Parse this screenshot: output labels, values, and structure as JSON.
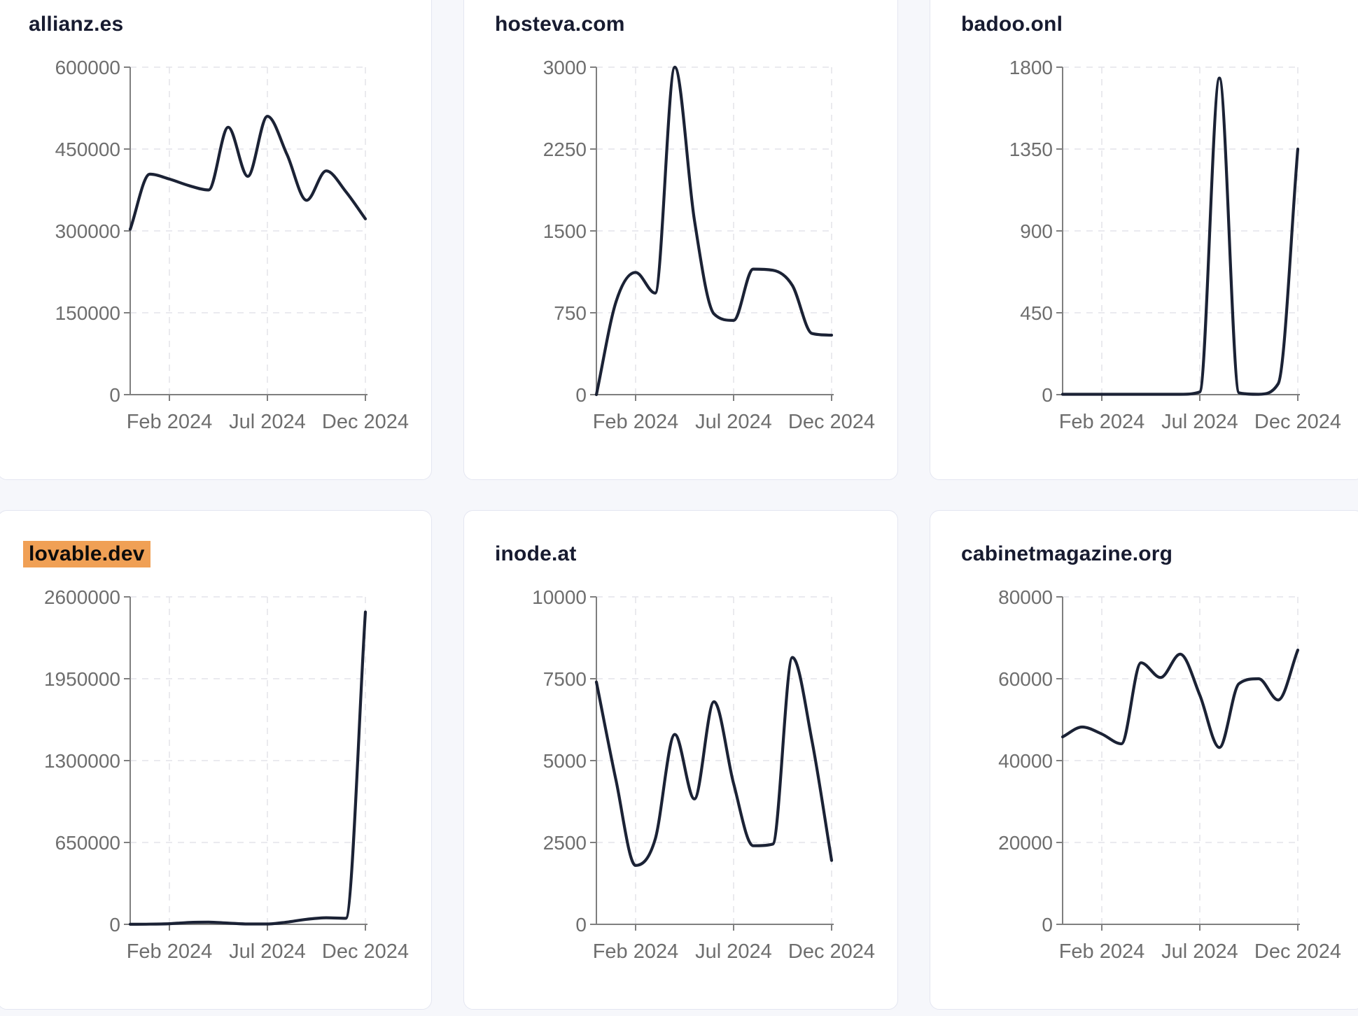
{
  "page": {
    "background_color": "#f6f7fb",
    "card_background": "#ffffff",
    "card_border_color": "#e4e6f1",
    "title_color": "#171b30",
    "highlight_color": "#f0a055",
    "line_color": "#1b2235",
    "grid_color": "#e4e4ea",
    "axis_color": "#7f7f7f",
    "tick_text_color": "#6e6e6e"
  },
  "x_axis": {
    "tick_labels": [
      "Feb 2024",
      "Jul 2024",
      "Dec 2024"
    ],
    "tick_point_indices": [
      2,
      7,
      12
    ]
  },
  "chart_data": [
    {
      "type": "line",
      "title": "allianz.es",
      "highlighted": false,
      "x": [
        "Dec 2023",
        "Jan 2024",
        "Feb 2024",
        "Mar 2024",
        "Apr 2024",
        "May 2024",
        "Jun 2024",
        "Jul 2024",
        "Aug 2024",
        "Sep 2024",
        "Oct 2024",
        "Nov 2024",
        "Dec 2024"
      ],
      "values": [
        303000,
        404000,
        395000,
        383000,
        375000,
        490000,
        400000,
        510000,
        440000,
        356000,
        410000,
        372000,
        322000
      ],
      "ylim": [
        0,
        600000
      ],
      "y_ticks": [
        0,
        150000,
        300000,
        450000,
        600000
      ],
      "grid": true,
      "legend": "none"
    },
    {
      "type": "line",
      "title": "hosteva.com",
      "highlighted": false,
      "x": [
        "Dec 2023",
        "Jan 2024",
        "Feb 2024",
        "Mar 2024",
        "Apr 2024",
        "May 2024",
        "Jun 2024",
        "Jul 2024",
        "Aug 2024",
        "Sep 2024",
        "Oct 2024",
        "Nov 2024",
        "Dec 2024"
      ],
      "values": [
        0,
        850,
        1120,
        930,
        3000,
        1600,
        740,
        680,
        1150,
        1140,
        1000,
        560,
        545
      ],
      "ylim": [
        0,
        3000
      ],
      "y_ticks": [
        0,
        750,
        1500,
        2250,
        3000
      ],
      "grid": true,
      "legend": "none"
    },
    {
      "type": "line",
      "title": "badoo.onl",
      "highlighted": false,
      "x": [
        "Dec 2023",
        "Jan 2024",
        "Feb 2024",
        "Mar 2024",
        "Apr 2024",
        "May 2024",
        "Jun 2024",
        "Jul 2024",
        "Aug 2024",
        "Sep 2024",
        "Oct 2024",
        "Nov 2024",
        "Dec 2024"
      ],
      "values": [
        2,
        2,
        2,
        2,
        2,
        2,
        2,
        15,
        1740,
        10,
        2,
        60,
        1350
      ],
      "ylim": [
        0,
        1800
      ],
      "y_ticks": [
        0,
        450,
        900,
        1350,
        1800
      ],
      "grid": true,
      "legend": "none"
    },
    {
      "type": "line",
      "title": "lovable.dev",
      "highlighted": true,
      "x": [
        "Dec 2023",
        "Jan 2024",
        "Feb 2024",
        "Mar 2024",
        "Apr 2024",
        "May 2024",
        "Jun 2024",
        "Jul 2024",
        "Aug 2024",
        "Sep 2024",
        "Oct 2024",
        "Nov 2024",
        "Dec 2024"
      ],
      "values": [
        500,
        1500,
        5000,
        15000,
        18000,
        10000,
        3000,
        3000,
        18000,
        40000,
        52000,
        48000,
        2480000
      ],
      "ylim": [
        0,
        2600000
      ],
      "y_ticks": [
        0,
        650000,
        1300000,
        1950000,
        2600000
      ],
      "grid": true,
      "legend": "none"
    },
    {
      "type": "line",
      "title": "inode.at",
      "highlighted": false,
      "x": [
        "Dec 2023",
        "Jan 2024",
        "Feb 2024",
        "Mar 2024",
        "Apr 2024",
        "May 2024",
        "Jun 2024",
        "Jul 2024",
        "Aug 2024",
        "Sep 2024",
        "Oct 2024",
        "Nov 2024",
        "Dec 2024"
      ],
      "values": [
        7400,
        4400,
        1800,
        2600,
        5800,
        3830,
        6800,
        4300,
        2400,
        2450,
        8150,
        5600,
        1950
      ],
      "ylim": [
        0,
        10000
      ],
      "y_ticks": [
        0,
        2500,
        5000,
        7500,
        10000
      ],
      "grid": true,
      "legend": "none"
    },
    {
      "type": "line",
      "title": "cabinetmagazine.org",
      "highlighted": false,
      "x": [
        "Dec 2023",
        "Jan 2024",
        "Feb 2024",
        "Mar 2024",
        "Apr 2024",
        "May 2024",
        "Jun 2024",
        "Jul 2024",
        "Aug 2024",
        "Sep 2024",
        "Oct 2024",
        "Nov 2024",
        "Dec 2024"
      ],
      "values": [
        45800,
        48200,
        46500,
        44100,
        63900,
        60300,
        66000,
        56000,
        43200,
        58800,
        60000,
        54800,
        67000
      ],
      "ylim": [
        0,
        80000
      ],
      "y_ticks": [
        0,
        20000,
        40000,
        60000,
        80000
      ],
      "grid": true,
      "legend": "none"
    }
  ]
}
